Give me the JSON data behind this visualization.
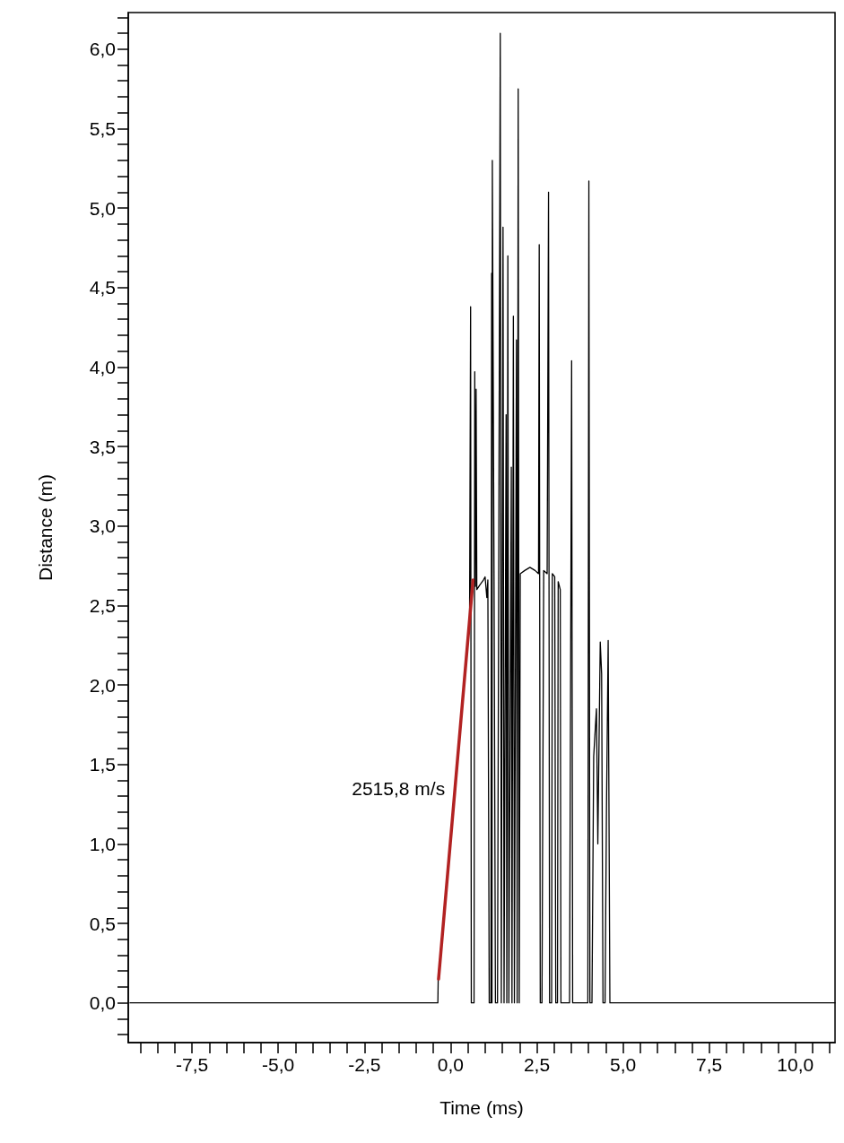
{
  "chart_data": {
    "type": "line",
    "xlabel": "Time (ms)",
    "ylabel": "Distance (m)",
    "xlim": [
      -9.35,
      11.15
    ],
    "ylim": [
      -0.25,
      6.23
    ],
    "xticks": [
      {
        "value": -9,
        "label": null
      },
      {
        "value": -8.5,
        "label": null
      },
      {
        "value": -8,
        "label": null
      },
      {
        "value": -7.5,
        "label": "-7,5"
      },
      {
        "value": -7,
        "label": null
      },
      {
        "value": -6.5,
        "label": null
      },
      {
        "value": -6,
        "label": null
      },
      {
        "value": -5.5,
        "label": null
      },
      {
        "value": -5,
        "label": "-5,0"
      },
      {
        "value": -4.5,
        "label": null
      },
      {
        "value": -4,
        "label": null
      },
      {
        "value": -3.5,
        "label": null
      },
      {
        "value": -3,
        "label": null
      },
      {
        "value": -2.5,
        "label": "-2,5"
      },
      {
        "value": -2,
        "label": null
      },
      {
        "value": -1.5,
        "label": null
      },
      {
        "value": -1,
        "label": null
      },
      {
        "value": -0.5,
        "label": null
      },
      {
        "value": 0,
        "label": "0,0"
      },
      {
        "value": 0.5,
        "label": null
      },
      {
        "value": 1,
        "label": null
      },
      {
        "value": 1.5,
        "label": null
      },
      {
        "value": 2,
        "label": null
      },
      {
        "value": 2.5,
        "label": "2,5"
      },
      {
        "value": 3,
        "label": null
      },
      {
        "value": 3.5,
        "label": null
      },
      {
        "value": 4,
        "label": null
      },
      {
        "value": 4.5,
        "label": null
      },
      {
        "value": 5,
        "label": "5,0"
      },
      {
        "value": 5.5,
        "label": null
      },
      {
        "value": 6,
        "label": null
      },
      {
        "value": 6.5,
        "label": null
      },
      {
        "value": 7,
        "label": null
      },
      {
        "value": 7.5,
        "label": "7,5"
      },
      {
        "value": 8,
        "label": null
      },
      {
        "value": 8.5,
        "label": null
      },
      {
        "value": 9,
        "label": null
      },
      {
        "value": 9.5,
        "label": null
      },
      {
        "value": 10,
        "label": "10,0"
      },
      {
        "value": 10.5,
        "label": null
      },
      {
        "value": 11,
        "label": null
      }
    ],
    "yticks": [
      {
        "value": -0.2,
        "label": null
      },
      {
        "value": -0.1,
        "label": null
      },
      {
        "value": 0,
        "label": "0,0"
      },
      {
        "value": 0.1,
        "label": null
      },
      {
        "value": 0.2,
        "label": null
      },
      {
        "value": 0.3,
        "label": null
      },
      {
        "value": 0.4,
        "label": null
      },
      {
        "value": 0.5,
        "label": "0,5"
      },
      {
        "value": 0.6,
        "label": null
      },
      {
        "value": 0.7,
        "label": null
      },
      {
        "value": 0.8,
        "label": null
      },
      {
        "value": 0.9,
        "label": null
      },
      {
        "value": 1,
        "label": "1,0"
      },
      {
        "value": 1.1,
        "label": null
      },
      {
        "value": 1.2,
        "label": null
      },
      {
        "value": 1.3,
        "label": null
      },
      {
        "value": 1.4,
        "label": null
      },
      {
        "value": 1.5,
        "label": "1,5"
      },
      {
        "value": 1.6,
        "label": null
      },
      {
        "value": 1.7,
        "label": null
      },
      {
        "value": 1.8,
        "label": null
      },
      {
        "value": 1.9,
        "label": null
      },
      {
        "value": 2,
        "label": "2,0"
      },
      {
        "value": 2.1,
        "label": null
      },
      {
        "value": 2.2,
        "label": null
      },
      {
        "value": 2.3,
        "label": null
      },
      {
        "value": 2.4,
        "label": null
      },
      {
        "value": 2.5,
        "label": "2,5"
      },
      {
        "value": 2.6,
        "label": null
      },
      {
        "value": 2.7,
        "label": null
      },
      {
        "value": 2.8,
        "label": null
      },
      {
        "value": 2.9,
        "label": null
      },
      {
        "value": 3,
        "label": "3,0"
      },
      {
        "value": 3.1,
        "label": null
      },
      {
        "value": 3.2,
        "label": null
      },
      {
        "value": 3.3,
        "label": null
      },
      {
        "value": 3.4,
        "label": null
      },
      {
        "value": 3.5,
        "label": "3,5"
      },
      {
        "value": 3.6,
        "label": null
      },
      {
        "value": 3.7,
        "label": null
      },
      {
        "value": 3.8,
        "label": null
      },
      {
        "value": 3.9,
        "label": null
      },
      {
        "value": 4,
        "label": "4,0"
      },
      {
        "value": 4.1,
        "label": null
      },
      {
        "value": 4.2,
        "label": null
      },
      {
        "value": 4.3,
        "label": null
      },
      {
        "value": 4.4,
        "label": null
      },
      {
        "value": 4.5,
        "label": "4,5"
      },
      {
        "value": 4.6,
        "label": null
      },
      {
        "value": 4.7,
        "label": null
      },
      {
        "value": 4.8,
        "label": null
      },
      {
        "value": 4.9,
        "label": null
      },
      {
        "value": 5,
        "label": "5,0"
      },
      {
        "value": 5.1,
        "label": null
      },
      {
        "value": 5.2,
        "label": null
      },
      {
        "value": 5.3,
        "label": null
      },
      {
        "value": 5.4,
        "label": null
      },
      {
        "value": 5.5,
        "label": "5,5"
      },
      {
        "value": 5.6,
        "label": null
      },
      {
        "value": 5.7,
        "label": null
      },
      {
        "value": 5.8,
        "label": null
      },
      {
        "value": 5.9,
        "label": null
      },
      {
        "value": 6,
        "label": "6,0"
      },
      {
        "value": 6.1,
        "label": null
      },
      {
        "value": 6.2,
        "label": null
      }
    ],
    "series": [
      {
        "color": "#000000",
        "x": [
          -9.3,
          -0.37,
          -0.36,
          0.55,
          0.58,
          0.6,
          0.68,
          0.7,
          0.72,
          0.74,
          0.76,
          0.85,
          0.95,
          1.0,
          1.05,
          1.08,
          1.12,
          1.17,
          1.19,
          1.2,
          1.21,
          1.26,
          1.3,
          1.36,
          1.44,
          1.47,
          1.52,
          1.55,
          1.61,
          1.63,
          1.66,
          1.69,
          1.76,
          1.78,
          1.82,
          1.85,
          1.91,
          1.93,
          1.96,
          1.99,
          2.02,
          2.15,
          2.3,
          2.45,
          2.55,
          2.57,
          2.6,
          2.65,
          2.7,
          2.8,
          2.84,
          2.87,
          2.93,
          2.95,
          3.02,
          3.05,
          3.1,
          3.12,
          3.18,
          3.2,
          3.45,
          3.51,
          3.54,
          3.98,
          4.01,
          4.04,
          4.1,
          4.15,
          4.23,
          4.27,
          4.34,
          4.38,
          4.42,
          4.48,
          4.52,
          4.57,
          4.62,
          11.15
        ],
        "values": [
          0,
          0,
          0.15,
          2.42,
          4.38,
          0,
          0,
          3.97,
          2.62,
          3.86,
          2.6,
          2.63,
          2.66,
          2.68,
          2.55,
          2.66,
          0,
          0,
          4.59,
          0,
          5.3,
          2.66,
          0,
          0,
          6.1,
          0,
          4.88,
          0,
          3.7,
          0,
          4.7,
          0,
          3.37,
          0,
          4.32,
          0,
          4.17,
          0,
          5.75,
          0,
          2.7,
          2.72,
          2.74,
          2.72,
          2.7,
          4.77,
          0,
          0,
          2.72,
          2.7,
          5.1,
          0,
          0,
          2.7,
          2.68,
          0,
          0,
          2.65,
          2.6,
          0,
          0,
          4.04,
          0,
          0,
          5.17,
          0,
          0,
          1.55,
          1.85,
          1.0,
          2.27,
          2.07,
          0,
          0,
          1.2,
          2.28,
          0,
          0
        ]
      },
      {
        "color": "#b22222",
        "x": [
          -0.35,
          0.65
        ],
        "values": [
          0.15,
          2.66
        ]
      }
    ],
    "annotations": [
      "2515,8 m/s"
    ]
  }
}
